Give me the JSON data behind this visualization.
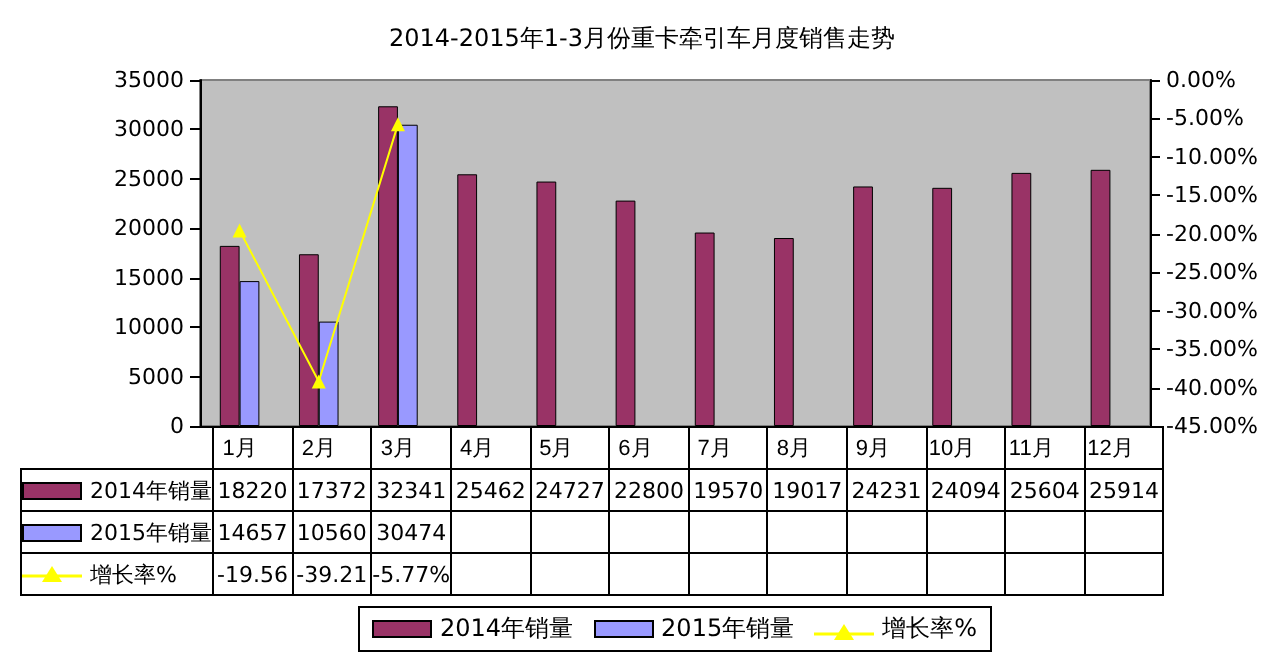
{
  "chart_data": {
    "type": "bar",
    "title": "2014-2015年1-3月份重卡牵引车月度销售走势",
    "categories": [
      "1月",
      "2月",
      "3月",
      "4月",
      "5月",
      "6月",
      "7月",
      "8月",
      "9月",
      "10月",
      "11月",
      "12月"
    ],
    "series": [
      {
        "name": "2014年销量",
        "color": "#993366",
        "values": [
          18220,
          17372,
          32341,
          25462,
          24727,
          22800,
          19570,
          19017,
          24231,
          24094,
          25604,
          25914
        ],
        "value_labels": [
          "18220",
          "17372",
          "32341",
          "25462",
          "24727",
          "22800",
          "19570",
          "19017",
          "24231",
          "24094",
          "25604",
          "25914"
        ]
      },
      {
        "name": "2015年销量",
        "color": "#9999ff",
        "values": [
          14657,
          10560,
          30474,
          null,
          null,
          null,
          null,
          null,
          null,
          null,
          null,
          null
        ],
        "value_labels": [
          "14657",
          "10560",
          "30474",
          null,
          null,
          null,
          null,
          null,
          null,
          null,
          null,
          null
        ]
      },
      {
        "name": "增长率%",
        "type": "line",
        "axis": "y2",
        "color": "#ffff00",
        "marker": "triangle",
        "values": [
          -19.56,
          -39.21,
          -5.77,
          null,
          null,
          null,
          null,
          null,
          null,
          null,
          null,
          null
        ],
        "value_labels": [
          "-19.56",
          "-39.21",
          "-5.77%",
          null,
          null,
          null,
          null,
          null,
          null,
          null,
          null,
          null
        ]
      }
    ],
    "ylim": [
      0,
      35000
    ],
    "yticks": [
      0,
      5000,
      10000,
      15000,
      20000,
      25000,
      30000,
      35000
    ],
    "y2lim": [
      -45,
      0
    ],
    "y2ticks": [
      {
        "value": 0,
        "label": "0.00%"
      },
      {
        "value": -5,
        "label": "-5.00%"
      },
      {
        "value": -10,
        "label": "-10.00%"
      },
      {
        "value": -15,
        "label": "-15.00%"
      },
      {
        "value": -20,
        "label": "-20.00%"
      },
      {
        "value": -25,
        "label": "-25.00%"
      },
      {
        "value": -30,
        "label": "-30.00%"
      },
      {
        "value": -35,
        "label": "-35.00%"
      },
      {
        "value": -40,
        "label": "-40.00%"
      },
      {
        "value": -45,
        "label": "-45.00%"
      }
    ],
    "legend": "bottom"
  }
}
